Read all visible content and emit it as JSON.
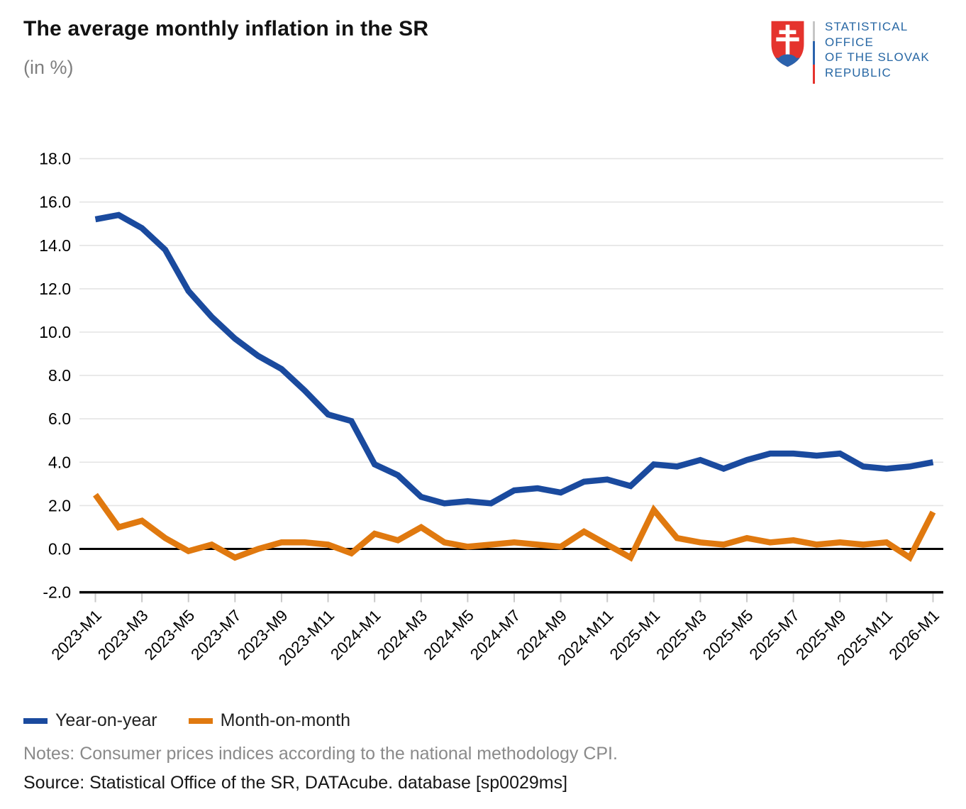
{
  "header": {
    "title": "The average monthly inflation in the SR",
    "subtitle": "(in %)"
  },
  "logo": {
    "org_lines": [
      "STATISTICAL",
      "OFFICE",
      "OF THE SLOVAK",
      "REPUBLIC"
    ],
    "colors": {
      "text_blue": "#2767a4",
      "shield_red": "#e5332d",
      "hill_blue": "#2b62ac"
    }
  },
  "chart_data": {
    "type": "line",
    "title": "The average monthly inflation in the SR",
    "subtitle": "(in %)",
    "xlabel": "",
    "ylabel": "",
    "ylim": [
      -2,
      18
    ],
    "grid": "horizontal",
    "legend_position": "bottom-left",
    "y_ticks": [
      "18.0",
      "16.0",
      "14.0",
      "12.0",
      "10.0",
      "8.0",
      "6.0",
      "4.0",
      "2.0",
      "0.0",
      "-2.0"
    ],
    "x_tick_every": 2,
    "categories": [
      "2023-M1",
      "2023-M2",
      "2023-M3",
      "2023-M4",
      "2023-M5",
      "2023-M6",
      "2023-M7",
      "2023-M8",
      "2023-M9",
      "2023-M10",
      "2023-M11",
      "2023-M12",
      "2024-M1",
      "2024-M2",
      "2024-M3",
      "2024-M4",
      "2024-M5",
      "2024-M6",
      "2024-M7",
      "2024-M8",
      "2024-M9",
      "2024-M10",
      "2024-M11",
      "2024-M12",
      "2025-M1",
      "2025-M2",
      "2025-M3",
      "2025-M4",
      "2025-M5",
      "2025-M6",
      "2025-M7",
      "2025-M8",
      "2025-M9",
      "2025-M10",
      "2025-M11",
      "2025-M12",
      "2026-M1"
    ],
    "series": [
      {
        "name": "Year-on-year",
        "color": "#1a4a9e",
        "values": [
          15.2,
          15.4,
          14.8,
          13.8,
          11.9,
          10.7,
          9.7,
          8.9,
          8.3,
          7.3,
          6.2,
          5.9,
          3.9,
          3.4,
          2.4,
          2.1,
          2.2,
          2.1,
          2.7,
          2.8,
          2.6,
          3.1,
          3.2,
          2.9,
          3.9,
          3.8,
          4.1,
          3.7,
          4.1,
          4.4,
          4.4,
          4.3,
          4.4,
          3.8,
          3.7,
          3.8,
          4.0
        ]
      },
      {
        "name": "Month-on-month",
        "color": "#e0790f",
        "values": [
          2.5,
          1.0,
          1.3,
          0.5,
          -0.1,
          0.2,
          -0.4,
          0.0,
          0.3,
          0.3,
          0.2,
          -0.2,
          0.7,
          0.4,
          1.0,
          0.3,
          0.1,
          0.2,
          0.3,
          0.2,
          0.1,
          0.8,
          0.2,
          -0.4,
          1.8,
          0.5,
          0.3,
          0.2,
          0.5,
          0.3,
          0.4,
          0.2,
          0.3,
          0.2,
          0.3,
          -0.4,
          1.7
        ]
      }
    ]
  },
  "footer": {
    "notes": "Notes: Consumer prices indices according to the national methodology CPI.",
    "source": "Source: Statistical Office of the SR, DATAcube. database [sp0029ms]"
  }
}
